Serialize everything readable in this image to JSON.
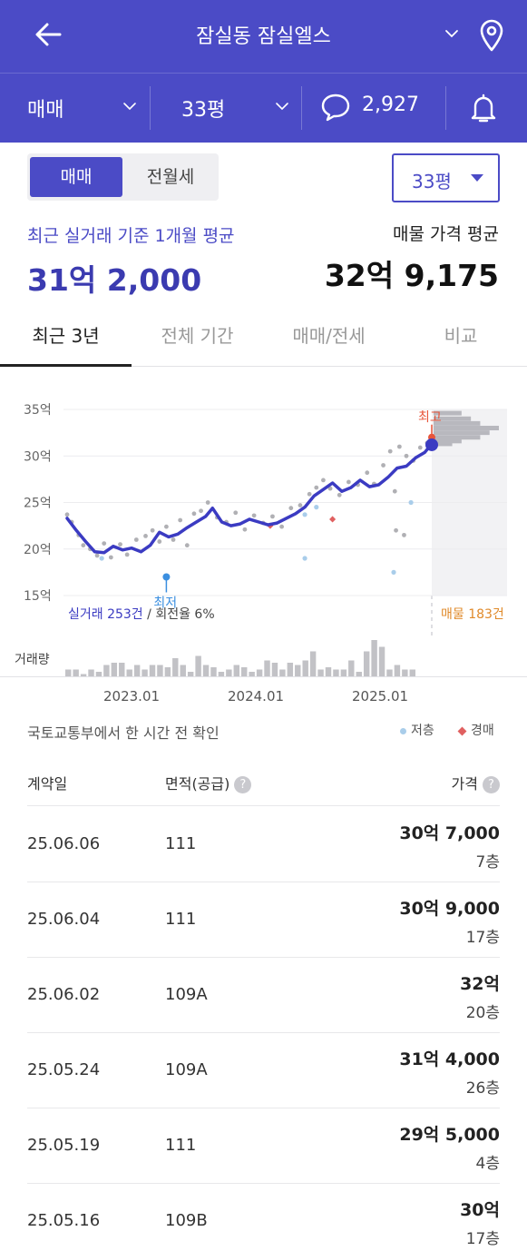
{
  "header": {
    "title": "잠실동 잠실엘스",
    "filters": {
      "deal_type": "매매",
      "area": "33평",
      "comment_count": "2,927"
    }
  },
  "switch": {
    "sale_tab": "매매",
    "rent_tab": "전월세",
    "area_select": "33평"
  },
  "summary": {
    "avg_label": "최근 실거래 기준 1개월 평균",
    "avg_value": "31억 2,000",
    "listing_label": "매물 가격 평균",
    "listing_value": "32억 9,175"
  },
  "period_tabs": [
    "최근 3년",
    "전체 기간",
    "매매/전세",
    "비교"
  ],
  "chart_data": {
    "type": "line",
    "y_ticks": [
      "35억",
      "30억",
      "25억",
      "20억",
      "15억"
    ],
    "ylim": [
      13.5,
      35
    ],
    "x_ticks": [
      "2023.01",
      "2024.01",
      "2025.01"
    ],
    "trend_series": [
      {
        "x": 2022.4,
        "y": 23.3
      },
      {
        "x": 2022.48,
        "y": 22.0
      },
      {
        "x": 2022.56,
        "y": 20.8
      },
      {
        "x": 2022.64,
        "y": 19.7
      },
      {
        "x": 2022.72,
        "y": 19.6
      },
      {
        "x": 2022.8,
        "y": 20.3
      },
      {
        "x": 2022.88,
        "y": 19.9
      },
      {
        "x": 2022.96,
        "y": 20.1
      },
      {
        "x": 2023.04,
        "y": 19.7
      },
      {
        "x": 2023.12,
        "y": 20.4
      },
      {
        "x": 2023.2,
        "y": 21.8
      },
      {
        "x": 2023.28,
        "y": 21.3
      },
      {
        "x": 2023.36,
        "y": 21.6
      },
      {
        "x": 2023.44,
        "y": 22.3
      },
      {
        "x": 2023.52,
        "y": 22.9
      },
      {
        "x": 2023.6,
        "y": 23.5
      },
      {
        "x": 2023.66,
        "y": 24.4
      },
      {
        "x": 2023.74,
        "y": 22.9
      },
      {
        "x": 2023.82,
        "y": 22.5
      },
      {
        "x": 2023.9,
        "y": 22.7
      },
      {
        "x": 2023.98,
        "y": 23.2
      },
      {
        "x": 2024.06,
        "y": 22.9
      },
      {
        "x": 2024.14,
        "y": 22.6
      },
      {
        "x": 2024.22,
        "y": 22.8
      },
      {
        "x": 2024.3,
        "y": 23.3
      },
      {
        "x": 2024.38,
        "y": 23.8
      },
      {
        "x": 2024.46,
        "y": 24.5
      },
      {
        "x": 2024.54,
        "y": 25.7
      },
      {
        "x": 2024.62,
        "y": 26.4
      },
      {
        "x": 2024.7,
        "y": 27.1
      },
      {
        "x": 2024.78,
        "y": 26.2
      },
      {
        "x": 2024.86,
        "y": 26.6
      },
      {
        "x": 2024.94,
        "y": 27.4
      },
      {
        "x": 2025.02,
        "y": 26.7
      },
      {
        "x": 2025.1,
        "y": 26.9
      },
      {
        "x": 2025.18,
        "y": 27.7
      },
      {
        "x": 2025.26,
        "y": 28.7
      },
      {
        "x": 2025.34,
        "y": 28.9
      },
      {
        "x": 2025.42,
        "y": 29.8
      },
      {
        "x": 2025.5,
        "y": 30.4
      },
      {
        "x": 2025.56,
        "y": 31.3
      }
    ],
    "transactions": [
      {
        "x": 2022.4,
        "y": 23.7
      },
      {
        "x": 2022.44,
        "y": 22.9
      },
      {
        "x": 2022.5,
        "y": 21.5
      },
      {
        "x": 2022.54,
        "y": 20.4
      },
      {
        "x": 2022.6,
        "y": 20.0
      },
      {
        "x": 2022.66,
        "y": 19.3
      },
      {
        "x": 2022.72,
        "y": 20.6
      },
      {
        "x": 2022.78,
        "y": 19.1
      },
      {
        "x": 2022.86,
        "y": 20.5
      },
      {
        "x": 2022.92,
        "y": 19.4
      },
      {
        "x": 2023.0,
        "y": 21.0
      },
      {
        "x": 2023.08,
        "y": 21.4
      },
      {
        "x": 2023.14,
        "y": 22.0
      },
      {
        "x": 2023.2,
        "y": 20.8
      },
      {
        "x": 2023.26,
        "y": 22.4
      },
      {
        "x": 2023.32,
        "y": 21.0
      },
      {
        "x": 2023.38,
        "y": 23.1
      },
      {
        "x": 2023.44,
        "y": 20.4
      },
      {
        "x": 2023.5,
        "y": 23.8
      },
      {
        "x": 2023.56,
        "y": 24.1
      },
      {
        "x": 2023.62,
        "y": 25.0
      },
      {
        "x": 2023.7,
        "y": 23.4
      },
      {
        "x": 2023.78,
        "y": 22.9
      },
      {
        "x": 2023.86,
        "y": 23.9
      },
      {
        "x": 2023.94,
        "y": 22.1
      },
      {
        "x": 2024.02,
        "y": 23.6
      },
      {
        "x": 2024.1,
        "y": 22.8
      },
      {
        "x": 2024.18,
        "y": 23.5
      },
      {
        "x": 2024.26,
        "y": 22.4
      },
      {
        "x": 2024.34,
        "y": 24.4
      },
      {
        "x": 2024.42,
        "y": 24.7
      },
      {
        "x": 2024.5,
        "y": 25.9
      },
      {
        "x": 2024.56,
        "y": 26.6
      },
      {
        "x": 2024.62,
        "y": 27.4
      },
      {
        "x": 2024.68,
        "y": 26.5
      },
      {
        "x": 2024.76,
        "y": 25.8
      },
      {
        "x": 2024.84,
        "y": 27.2
      },
      {
        "x": 2024.92,
        "y": 26.9
      },
      {
        "x": 2025.0,
        "y": 28.2
      },
      {
        "x": 2025.06,
        "y": 27.0
      },
      {
        "x": 2025.14,
        "y": 29.0
      },
      {
        "x": 2025.2,
        "y": 30.5
      },
      {
        "x": 2025.24,
        "y": 26.2
      },
      {
        "x": 2025.28,
        "y": 31.0
      },
      {
        "x": 2025.34,
        "y": 30.0
      },
      {
        "x": 2025.4,
        "y": 29.5
      },
      {
        "x": 2025.46,
        "y": 30.9
      },
      {
        "x": 2025.52,
        "y": 31.4
      },
      {
        "x": 2025.25,
        "y": 22.0
      },
      {
        "x": 2025.32,
        "y": 21.5
      }
    ],
    "low_floor": [
      {
        "x": 2022.7,
        "y": 19.0
      },
      {
        "x": 2024.46,
        "y": 19.0
      },
      {
        "x": 2024.46,
        "y": 23.7
      },
      {
        "x": 2024.56,
        "y": 24.5
      },
      {
        "x": 2025.23,
        "y": 17.5
      },
      {
        "x": 2025.38,
        "y": 25.0
      }
    ],
    "auction": [
      {
        "x": 2024.16,
        "y": 22.5
      },
      {
        "x": 2024.7,
        "y": 23.2
      }
    ],
    "lowest": {
      "x": 2023.26,
      "y": 17.0,
      "label": "최저"
    },
    "highest": {
      "x": 2025.56,
      "y": 32.0,
      "label": "최고"
    },
    "current": {
      "x": 2025.56,
      "y": 31.2
    },
    "listing_histogram": [
      {
        "y": 34.6,
        "count": 3
      },
      {
        "y": 34.0,
        "count": 4
      },
      {
        "y": 33.5,
        "count": 5
      },
      {
        "y": 33.0,
        "count": 7
      },
      {
        "y": 32.5,
        "count": 6
      },
      {
        "y": 32.0,
        "count": 5
      },
      {
        "y": 31.6,
        "count": 3
      },
      {
        "y": 31.3,
        "count": 2
      }
    ],
    "volume": [
      3,
      3,
      1,
      3,
      2,
      5,
      6,
      6,
      3,
      5,
      3,
      5,
      5,
      4,
      8,
      5,
      2,
      9,
      5,
      4,
      2,
      3,
      5,
      4,
      2,
      3,
      7,
      6,
      3,
      6,
      5,
      7,
      11,
      3,
      4,
      3,
      3,
      7,
      2,
      11,
      16,
      13,
      3,
      5,
      3,
      3
    ],
    "annotations": {
      "trade_count": "실거래 253건",
      "turnover": " / 회전율 6%",
      "listing_count": "매물 183건",
      "volume_label": "거래량"
    }
  },
  "source_text": "국토교통부에서 한 시간 전 확인",
  "legend": {
    "low_floor": "저층",
    "auction": "경매"
  },
  "table": {
    "headers": {
      "date": "계약일",
      "area": "면적(공급)",
      "price": "가격"
    },
    "rows": [
      {
        "date": "25.06.06",
        "area": "111",
        "price": "30억 7,000",
        "floor": "7층"
      },
      {
        "date": "25.06.04",
        "area": "111",
        "price": "30억 9,000",
        "floor": "17층"
      },
      {
        "date": "25.06.02",
        "area": "109A",
        "price": "32억",
        "floor": "20층"
      },
      {
        "date": "25.05.24",
        "area": "109A",
        "price": "31억 4,000",
        "floor": "26층"
      },
      {
        "date": "25.05.19",
        "area": "111",
        "price": "29억 5,000",
        "floor": "4층"
      },
      {
        "date": "25.05.16",
        "area": "109B",
        "price": "30억",
        "floor": "17층"
      }
    ]
  },
  "colors": {
    "brand": "#4B4BC6",
    "trend_line": "#3B3BC2",
    "transaction_dot": "#B0B0B4",
    "low_floor_dot": "#A9CDEA",
    "auction_marker": "#E06060",
    "lowest_marker": "#3B8FE0",
    "highest_marker": "#E8553A",
    "listing_count": "#E08A2A"
  }
}
